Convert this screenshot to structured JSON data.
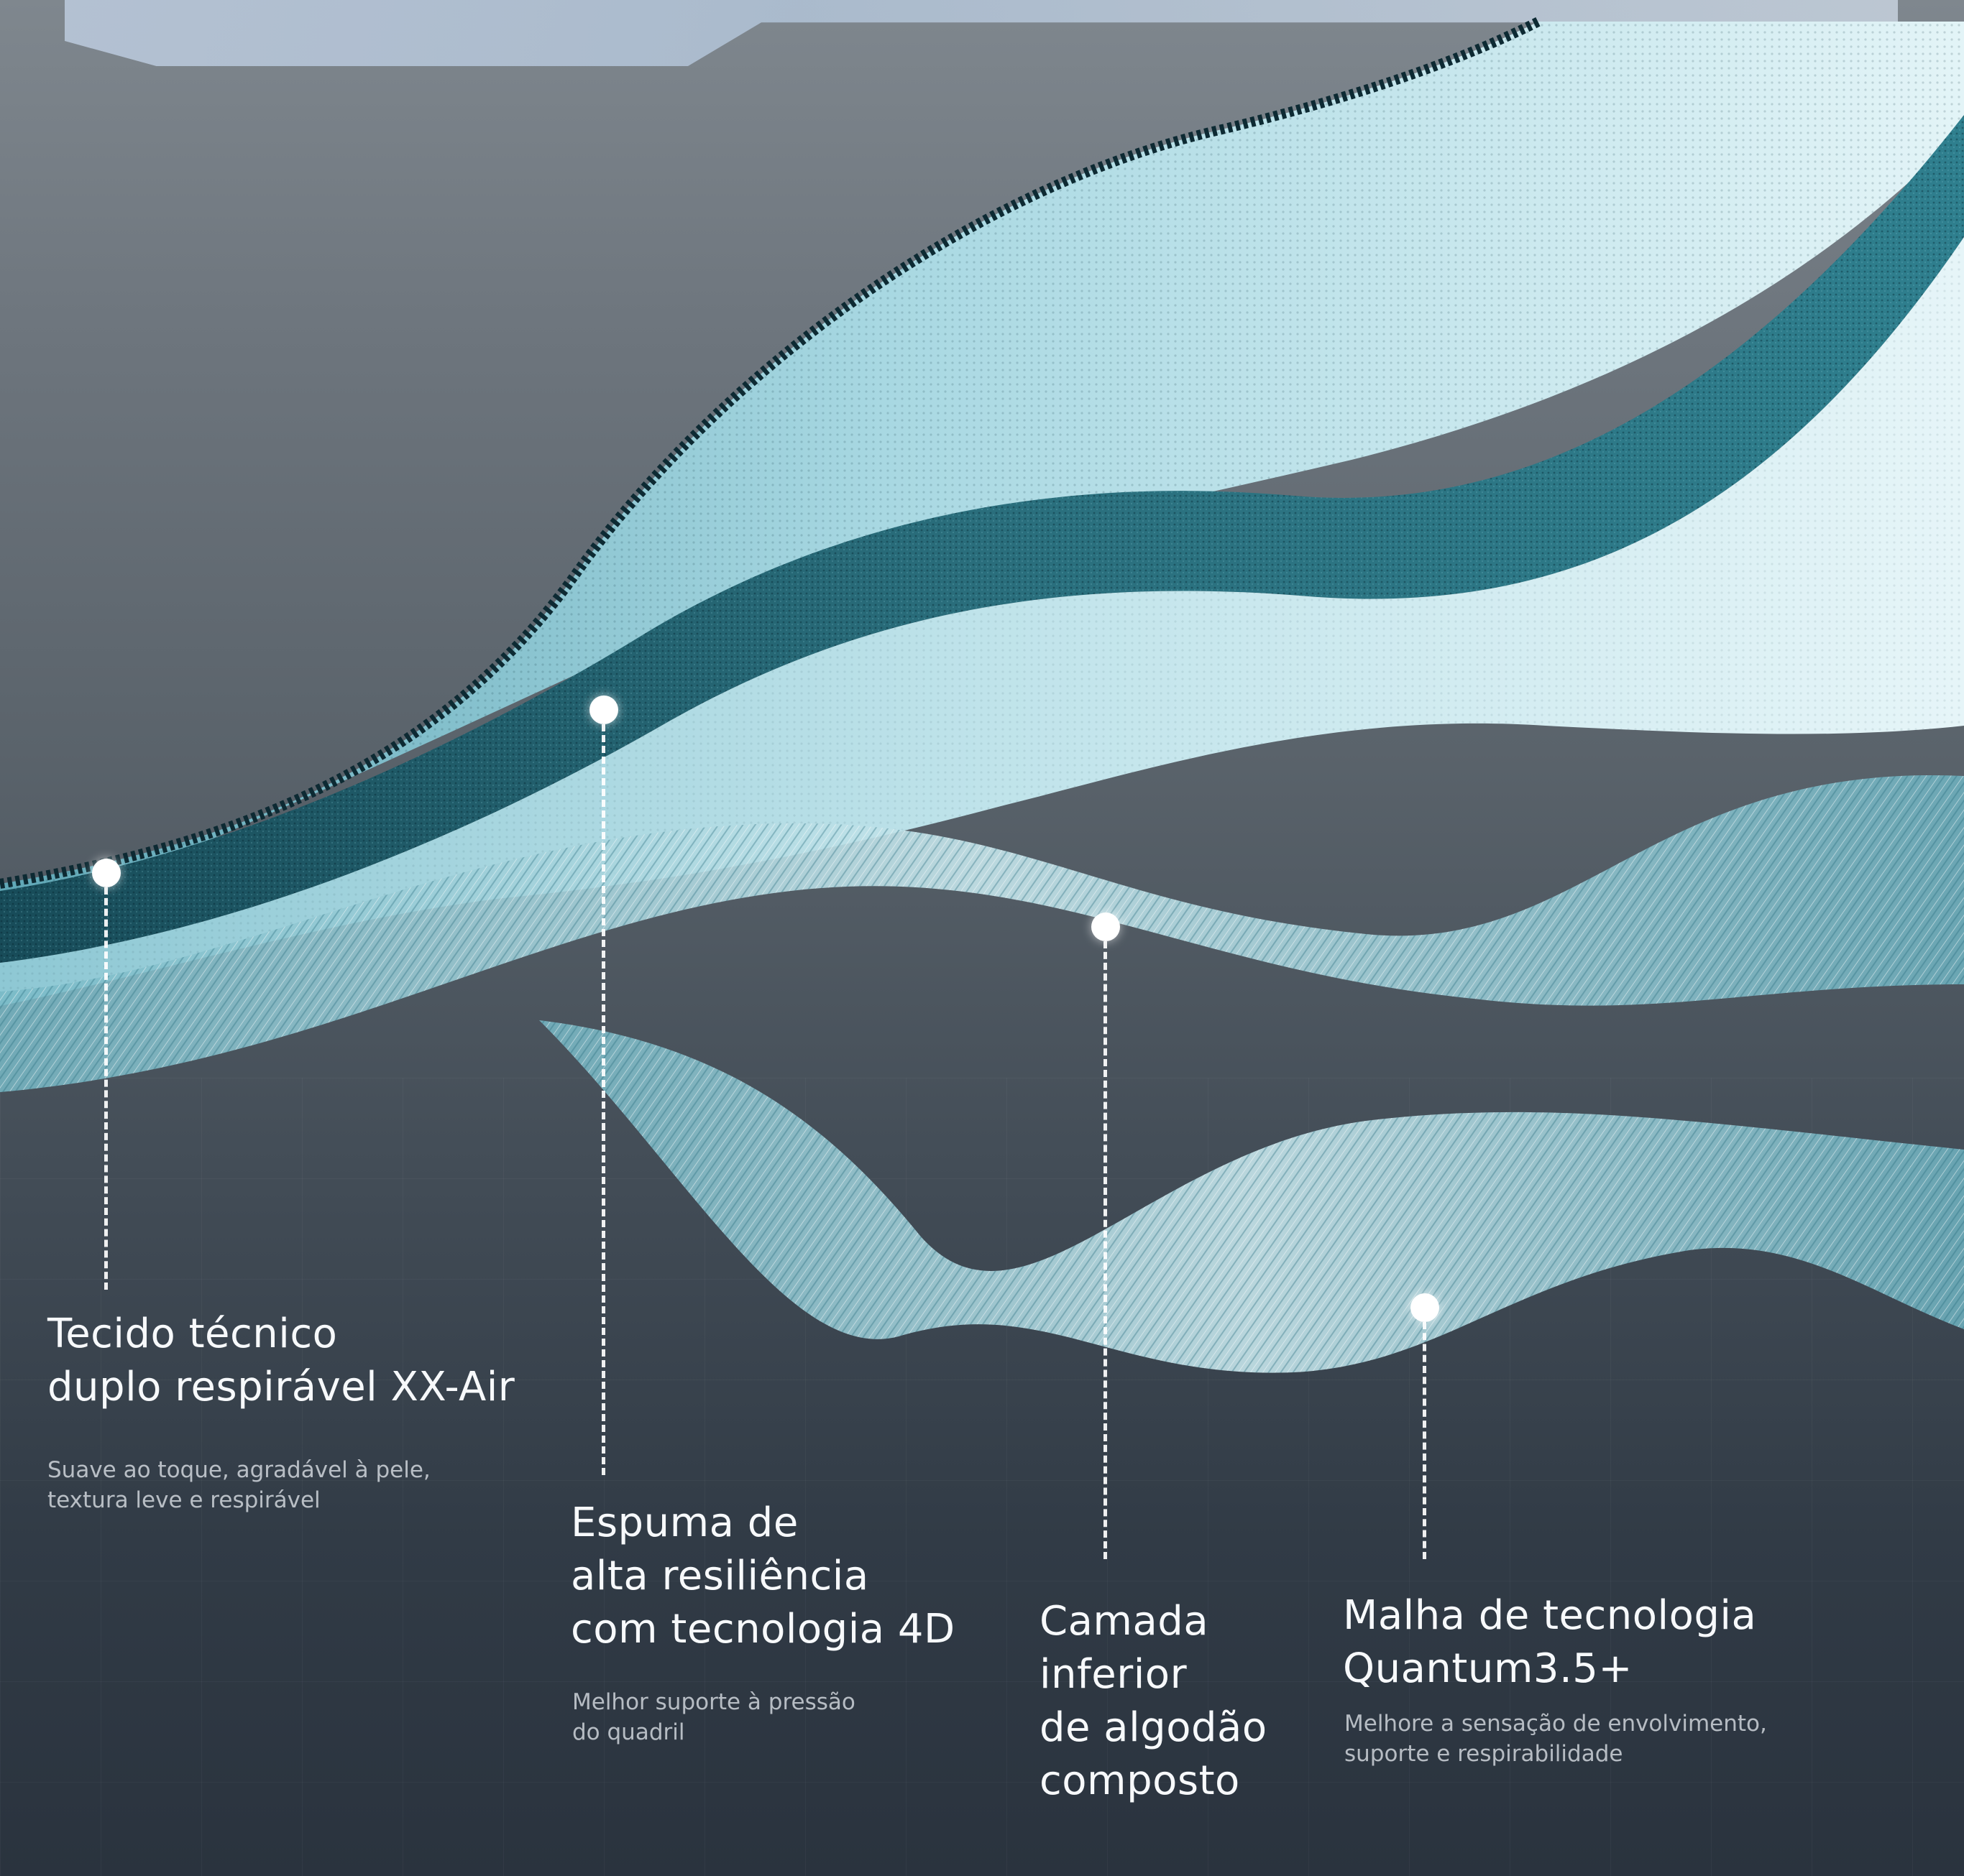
{
  "callouts": [
    {
      "title": "Tecido técnico\nduplo respirável XX-Air",
      "description": "Suave ao toque, agradável à pele,\ntextura leve e respirável"
    },
    {
      "title": "Espuma de\nalta resiliência\ncom tecnologia 4D",
      "description": "Melhor suporte  à pressão\ndo quadril"
    },
    {
      "title": "Camada\ninferior\nde algodão\ncomposto",
      "description": ""
    },
    {
      "title": "Malha de tecnologia\nQuantum3.5+",
      "description": "Melhore a sensação de envolvimento,\nsuporte e respirabilidade"
    }
  ],
  "colors": {
    "fabric_light": "#d7eef3",
    "fabric_mid": "#7fc0cd",
    "fabric_dark": "#1f5a68",
    "foam_teal": "#2a6e7c",
    "mesh": "#9fd0db",
    "background_top": "#7f878e",
    "background_bottom": "#2a333e"
  }
}
